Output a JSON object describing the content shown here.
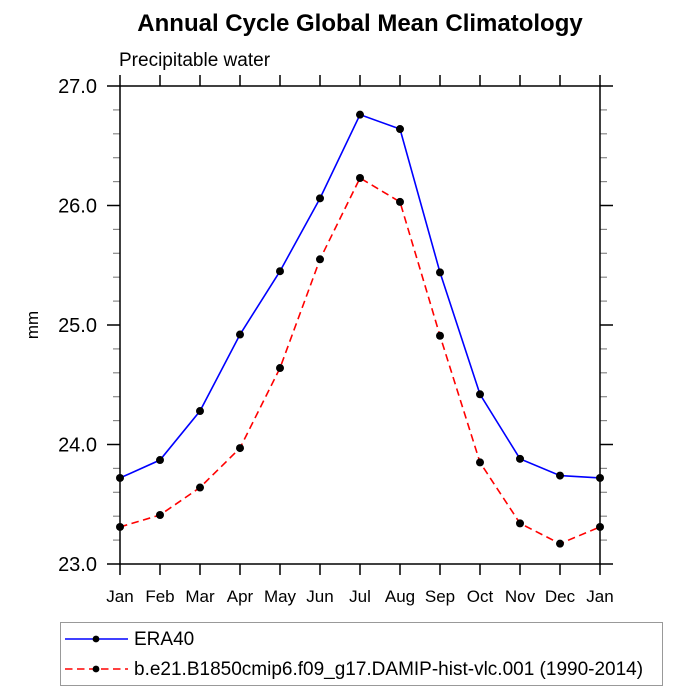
{
  "chart_data": {
    "type": "line",
    "title": "Annual Cycle Global Mean Climatology",
    "subtitle": "Precipitable water",
    "ylabel": "mm",
    "xlabel": "",
    "categories": [
      "Jan",
      "Feb",
      "Mar",
      "Apr",
      "May",
      "Jun",
      "Jul",
      "Aug",
      "Sep",
      "Oct",
      "Nov",
      "Dec",
      "Jan"
    ],
    "ylim": [
      23.0,
      27.0
    ],
    "y_major_ticks": [
      27.0,
      26.0,
      25.0,
      24.0,
      23.0
    ],
    "y_major_tick_labels": [
      "27.0",
      "26.0",
      "25.0",
      "24.0",
      "23.0"
    ],
    "y_minor_tick_step": 0.2,
    "grid": false,
    "legend_position": "bottom-left",
    "frame_color": "#000000",
    "minor_tick_color": "#888888",
    "marker_color": "#000000",
    "series": [
      {
        "name": "ERA40",
        "color": "#0000ff",
        "line_style": "solid",
        "marker": "filled-circle",
        "values": [
          23.72,
          23.87,
          24.28,
          24.92,
          25.45,
          26.06,
          26.76,
          26.64,
          25.44,
          24.42,
          23.88,
          23.74,
          23.72
        ]
      },
      {
        "name": "b.e21.B1850cmip6.f09_g17.DAMIP-hist-vlc.001 (1990-2014)",
        "color": "#ff0000",
        "line_style": "dashed",
        "marker": "filled-circle",
        "values": [
          23.31,
          23.41,
          23.64,
          23.97,
          24.64,
          25.55,
          26.23,
          26.03,
          24.91,
          23.85,
          23.34,
          23.17,
          23.31
        ]
      }
    ]
  }
}
